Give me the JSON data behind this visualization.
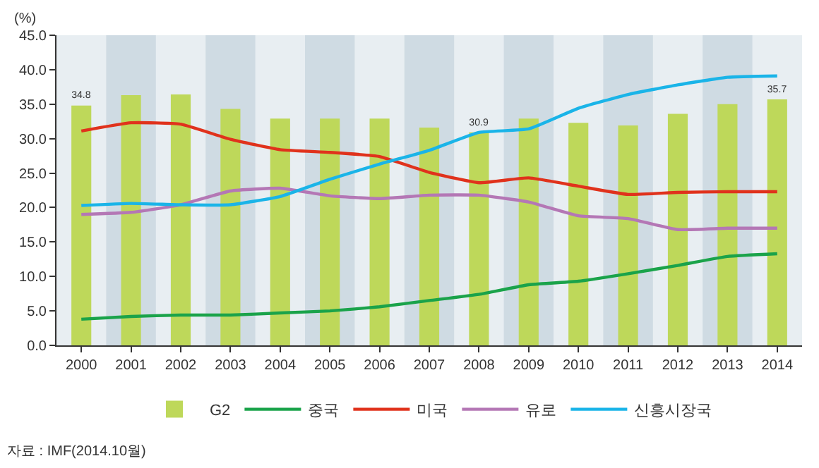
{
  "chart_data": {
    "type": "bar",
    "ylabel": "(%)",
    "categories": [
      "2000",
      "2001",
      "2002",
      "2003",
      "2004",
      "2005",
      "2006",
      "2007",
      "2008",
      "2009",
      "2010",
      "2011",
      "2012",
      "2013",
      "2014"
    ],
    "series": [
      {
        "name": "G2",
        "color": "#bed85a",
        "values": [
          34.8,
          36.3,
          36.4,
          34.3,
          32.9,
          32.9,
          32.9,
          31.6,
          30.9,
          32.9,
          32.3,
          31.9,
          33.6,
          35.0,
          35.7
        ],
        "value_labels": [
          "34.8",
          null,
          null,
          null,
          null,
          null,
          null,
          null,
          "30.9",
          null,
          null,
          null,
          null,
          null,
          "35.7"
        ]
      },
      {
        "name": "중국",
        "type": "line",
        "color": "#1aa34a",
        "values": [
          3.8,
          4.2,
          4.4,
          4.4,
          4.7,
          5.0,
          5.6,
          6.5,
          7.4,
          8.8,
          9.3,
          10.4,
          11.6,
          12.9,
          13.3
        ]
      },
      {
        "name": "미국",
        "type": "line",
        "color": "#e0321c",
        "values": [
          31.1,
          32.3,
          32.1,
          29.9,
          28.4,
          28.0,
          27.4,
          25.1,
          23.6,
          24.3,
          23.1,
          21.9,
          22.2,
          22.3,
          22.3
        ]
      },
      {
        "name": "유로",
        "type": "line",
        "color": "#b477b5",
        "values": [
          19.0,
          19.3,
          20.4,
          22.4,
          22.8,
          21.7,
          21.3,
          21.8,
          21.8,
          20.8,
          18.8,
          18.4,
          16.8,
          17.0,
          17.0
        ]
      },
      {
        "name": "신흥시장국",
        "type": "line",
        "color": "#1ab4e8",
        "values": [
          20.3,
          20.6,
          20.4,
          20.4,
          21.6,
          24.1,
          26.3,
          28.3,
          30.9,
          31.4,
          34.4,
          36.4,
          37.8,
          38.9,
          39.1
        ]
      }
    ],
    "ylim": [
      0,
      45
    ],
    "yticks": [
      {
        "value": 0,
        "label": "0.0"
      },
      {
        "value": 5,
        "label": "5.0"
      },
      {
        "value": 10,
        "label": "10.0"
      },
      {
        "value": 15,
        "label": "15.0"
      },
      {
        "value": 20,
        "label": "20.0"
      },
      {
        "value": 25,
        "label": "25.0"
      },
      {
        "value": 30,
        "label": "30.0"
      },
      {
        "value": 35,
        "label": "35.0"
      },
      {
        "value": 40,
        "label": "40.0"
      },
      {
        "value": 45,
        "label": "45.0"
      }
    ],
    "bands": [
      {
        "axis": "x",
        "from": "2001",
        "to": "2001",
        "color": "#cfdbe3"
      },
      {
        "axis": "x",
        "from": "2003",
        "to": "2003",
        "color": "#cfdbe3"
      },
      {
        "axis": "x",
        "from": "2005",
        "to": "2005",
        "color": "#cfdbe3"
      },
      {
        "axis": "x",
        "from": "2007",
        "to": "2007",
        "color": "#cfdbe3"
      },
      {
        "axis": "x",
        "from": "2009",
        "to": "2009",
        "color": "#cfdbe3"
      },
      {
        "axis": "x",
        "from": "2011",
        "to": "2011",
        "color": "#cfdbe3"
      },
      {
        "axis": "x",
        "from": "2013",
        "to": "2013",
        "color": "#cfdbe3"
      }
    ],
    "grid": false,
    "legend": "bottom",
    "line_style": "solid",
    "marker": "none",
    "annotations": [
      "자료 : IMF(2014.10월)"
    ]
  }
}
